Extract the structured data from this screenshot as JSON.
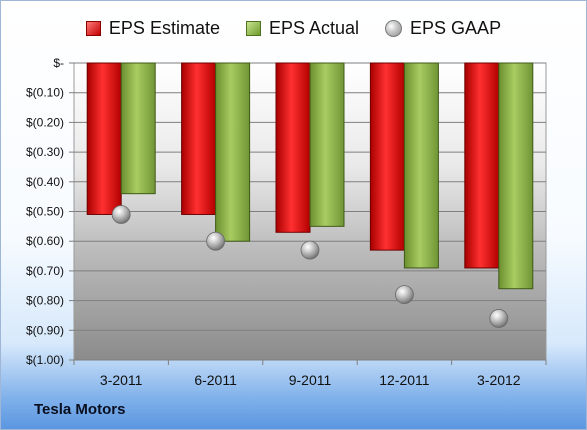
{
  "chart_data": {
    "type": "bar",
    "categories": [
      "3-2011",
      "6-2011",
      "9-2011",
      "12-2011",
      "3-2012"
    ],
    "series": [
      {
        "name": "EPS Estimate",
        "kind": "bar",
        "color": "#d41c1c",
        "values": [
          -0.51,
          -0.51,
          -0.57,
          -0.63,
          -0.69
        ]
      },
      {
        "name": "EPS Actual",
        "kind": "bar",
        "color": "#8fb54a",
        "values": [
          -0.44,
          -0.6,
          -0.55,
          -0.69,
          -0.76
        ]
      },
      {
        "name": "EPS GAAP",
        "kind": "marker",
        "color": "#a8a8a8",
        "values": [
          -0.51,
          -0.6,
          -0.63,
          -0.78,
          -0.86
        ]
      }
    ],
    "ylim": [
      -1.0,
      0.0
    ],
    "yticks": [
      "$-",
      "$(0.10)",
      "$(0.20)",
      "$(0.30)",
      "$(0.40)",
      "$(0.50)",
      "$(0.60)",
      "$(0.70)",
      "$(0.80)",
      "$(0.90)",
      "$(1.00)"
    ],
    "grid": true,
    "legend": "top-center",
    "company": "Tesla Motors"
  }
}
